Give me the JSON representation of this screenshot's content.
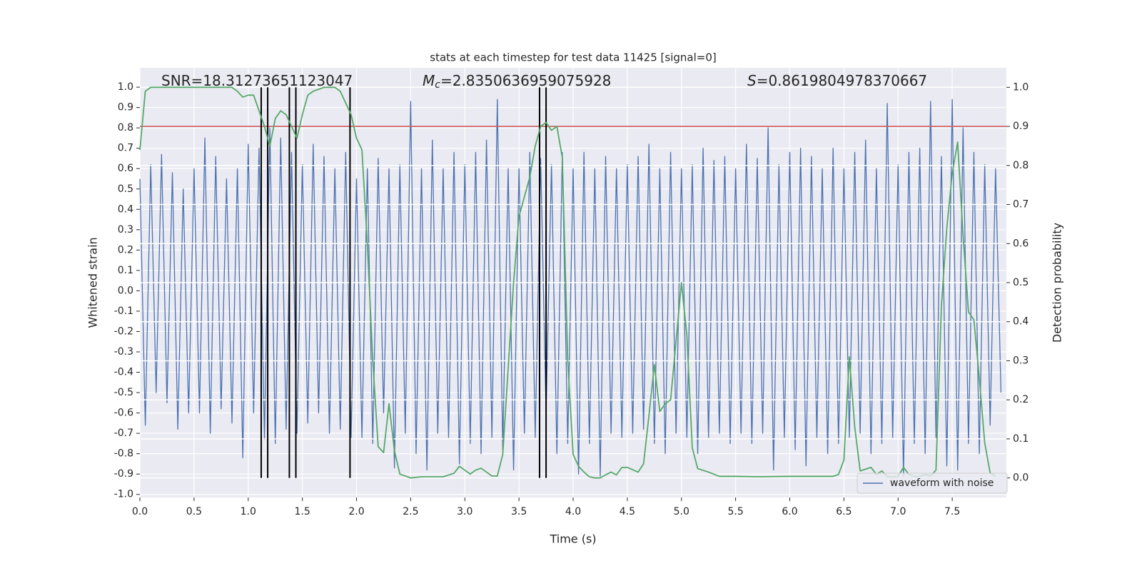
{
  "chart_data": {
    "type": "line",
    "title": "stats at each timestep for test data 11425 [signal=0]",
    "xlabel": "Time (s)",
    "ylabel": "Whitened strain",
    "y2label": "Detection probability",
    "annotations": [
      {
        "label": "SNR=18.31273651123047"
      },
      {
        "symbol": "M",
        "subscript": "c",
        "label": "=2.8350636959075928"
      },
      {
        "symbol": "S",
        "label": "=0.8619804978370667"
      }
    ],
    "xlim": [
      0,
      8.0
    ],
    "ylim": [
      -1.015,
      1.095
    ],
    "y2lim": [
      -0.05,
      1.05
    ],
    "xticks": [
      {
        "value": 0,
        "label": "0.0"
      },
      0.5,
      {
        "value": 1,
        "label": "1.0"
      },
      1.5,
      {
        "value": 2,
        "label": "2.0"
      },
      2.5,
      {
        "value": 3,
        "label": "3.0"
      },
      3.5,
      {
        "value": 4,
        "label": "4.0"
      },
      4.5,
      {
        "value": 5,
        "label": "5.0"
      },
      5.5,
      {
        "value": 6,
        "label": "6.0"
      },
      6.5,
      {
        "value": 7,
        "label": "7.0"
      },
      7.5
    ],
    "yticks": [
      {
        "value": -1,
        "label": "-1.0"
      },
      -0.9,
      -0.8,
      -0.7,
      -0.6,
      -0.5,
      -0.4,
      -0.3,
      -0.2,
      -0.1,
      {
        "value": 0,
        "label": "0.0"
      },
      0.1,
      0.2,
      0.3,
      0.4,
      0.5,
      0.6,
      0.7,
      0.8,
      0.9,
      {
        "value": 1,
        "label": "1.0"
      }
    ],
    "y2ticks": [
      {
        "value": 0,
        "label": "0.0"
      },
      0.1,
      0.2,
      0.3,
      0.4,
      0.5,
      0.6,
      0.7,
      0.8,
      0.9,
      {
        "value": 1,
        "label": "1.0"
      }
    ],
    "grid": true,
    "legend": "lower right",
    "series": [
      {
        "name": "waveform with noise",
        "color": "#4c72b0",
        "x": [
          0,
          0.05,
          0.1,
          0.15,
          0.2,
          0.25,
          0.3,
          0.35,
          0.4,
          0.45,
          0.5,
          0.55,
          0.6,
          0.65,
          0.7,
          0.75,
          0.8,
          0.85,
          0.9,
          0.95,
          1.0,
          1.05,
          1.1,
          1.15,
          1.2,
          1.25,
          1.3,
          1.35,
          1.4,
          1.45,
          1.5,
          1.55,
          1.6,
          1.65,
          1.7,
          1.75,
          1.8,
          1.85,
          1.9,
          1.95,
          2.0,
          2.05,
          2.1,
          2.15,
          2.2,
          2.25,
          2.3,
          2.35,
          2.4,
          2.45,
          2.5,
          2.55,
          2.6,
          2.65,
          2.7,
          2.75,
          2.8,
          2.85,
          2.9,
          2.95,
          3.0,
          3.05,
          3.1,
          3.15,
          3.2,
          3.25,
          3.3,
          3.35,
          3.4,
          3.45,
          3.5,
          3.55,
          3.6,
          3.65,
          3.7,
          3.75,
          3.8,
          3.85,
          3.9,
          3.95,
          4.0,
          4.05,
          4.1,
          4.15,
          4.2,
          4.25,
          4.3,
          4.35,
          4.4,
          4.45,
          4.5,
          4.55,
          4.6,
          4.65,
          4.7,
          4.75,
          4.8,
          4.85,
          4.9,
          4.95,
          5.0,
          5.05,
          5.1,
          5.15,
          5.2,
          5.25,
          5.3,
          5.35,
          5.4,
          5.45,
          5.5,
          5.55,
          5.6,
          5.65,
          5.7,
          5.75,
          5.8,
          5.85,
          5.9,
          5.95,
          6.0,
          6.05,
          6.1,
          6.15,
          6.2,
          6.25,
          6.3,
          6.35,
          6.4,
          6.45,
          6.5,
          6.55,
          6.6,
          6.65,
          6.7,
          6.75,
          6.8,
          6.85,
          6.9,
          6.95,
          7.0,
          7.05,
          7.1,
          7.15,
          7.2,
          7.25,
          7.3,
          7.35,
          7.4,
          7.45,
          7.5,
          7.55,
          7.6,
          7.65,
          7.7,
          7.75,
          7.8,
          7.85,
          7.9,
          7.95
        ],
        "values": [
          0.55,
          -0.66,
          0.62,
          -0.5,
          0.67,
          -0.55,
          0.58,
          -0.68,
          0.5,
          -0.6,
          0.6,
          -0.6,
          0.75,
          -0.7,
          0.66,
          -0.58,
          0.55,
          -0.65,
          0.6,
          -0.82,
          0.72,
          -0.6,
          0.7,
          -0.73,
          0.8,
          -0.75,
          0.75,
          -0.68,
          0.68,
          -0.7,
          0.62,
          -0.65,
          0.72,
          -0.6,
          0.66,
          -0.7,
          0.6,
          -0.68,
          0.68,
          -0.72,
          0.55,
          -0.72,
          0.6,
          -0.75,
          0.65,
          -0.6,
          0.6,
          -0.87,
          0.62,
          -0.7,
          0.93,
          -0.8,
          0.6,
          -0.88,
          0.74,
          -0.7,
          0.6,
          -0.72,
          0.68,
          -0.85,
          0.62,
          -0.75,
          0.68,
          -0.8,
          0.74,
          -0.72,
          0.94,
          -0.78,
          0.6,
          -0.88,
          0.6,
          -0.7,
          0.68,
          -0.72,
          0.65,
          -0.6,
          0.62,
          -0.8,
          0.68,
          -0.75,
          0.6,
          -0.9,
          0.68,
          -0.75,
          0.6,
          -0.91,
          0.66,
          -0.7,
          0.6,
          -0.72,
          0.62,
          -0.7,
          0.66,
          -0.68,
          0.72,
          -0.75,
          0.6,
          -0.8,
          0.68,
          -0.7,
          0.6,
          -0.72,
          0.62,
          -0.8,
          0.7,
          -0.72,
          0.64,
          -0.7,
          0.66,
          -0.75,
          0.6,
          -0.7,
          0.72,
          -0.75,
          0.65,
          -0.7,
          0.8,
          -0.88,
          0.62,
          -0.72,
          0.68,
          -0.78,
          0.7,
          -0.86,
          0.66,
          -0.72,
          0.6,
          -0.8,
          0.7,
          -0.75,
          0.6,
          -0.72,
          0.68,
          -0.7,
          0.74,
          -0.8,
          0.6,
          -0.75,
          0.92,
          -0.72,
          0.62,
          -0.91,
          0.68,
          -0.75,
          0.7,
          -0.8,
          0.93,
          -0.72,
          0.66,
          -0.86,
          0.94,
          -0.88,
          0.8,
          -0.75,
          0.68,
          -0.8,
          0.62,
          -0.66,
          0.6,
          -0.5
        ]
      },
      {
        "color": "#55a868",
        "axis": "y2",
        "x": [
          0,
          0.05,
          0.1,
          0.85,
          0.9,
          0.95,
          1.0,
          1.05,
          1.1,
          1.15,
          1.2,
          1.25,
          1.3,
          1.35,
          1.4,
          1.45,
          1.5,
          1.55,
          1.6,
          1.7,
          1.8,
          1.85,
          1.9,
          1.95,
          2.0,
          2.05,
          2.1,
          2.15,
          2.2,
          2.25,
          2.3,
          2.35,
          2.4,
          2.5,
          2.6,
          2.8,
          2.9,
          2.95,
          3.0,
          3.05,
          3.1,
          3.15,
          3.2,
          3.25,
          3.3,
          3.35,
          3.4,
          3.45,
          3.5,
          3.55,
          3.6,
          3.65,
          3.7,
          3.75,
          3.8,
          3.85,
          3.9,
          3.95,
          4.0,
          4.05,
          4.1,
          4.15,
          4.2,
          4.25,
          4.3,
          4.35,
          4.4,
          4.45,
          4.5,
          4.6,
          4.65,
          4.7,
          4.75,
          4.8,
          4.85,
          4.9,
          4.95,
          5.0,
          5.05,
          5.1,
          5.15,
          5.25,
          5.35,
          5.5,
          5.7,
          6.0,
          6.4,
          6.45,
          6.5,
          6.55,
          6.6,
          6.65,
          6.75,
          6.8,
          6.85,
          6.9,
          6.95,
          7.0,
          7.05,
          7.1,
          7.15,
          7.2,
          7.25,
          7.3,
          7.35,
          7.4,
          7.45,
          7.5,
          7.55,
          7.6,
          7.65,
          7.7,
          7.75,
          7.8,
          7.85,
          7.9
        ],
        "values": [
          0.84,
          0.99,
          1.0,
          1.0,
          0.99,
          0.975,
          0.98,
          0.98,
          0.94,
          0.9,
          0.85,
          0.92,
          0.94,
          0.93,
          0.9,
          0.87,
          0.93,
          0.98,
          0.99,
          1.0,
          1.0,
          0.99,
          0.96,
          0.93,
          0.87,
          0.84,
          0.6,
          0.3,
          0.08,
          0.065,
          0.19,
          0.07,
          0.01,
          0.0,
          0.003,
          0.003,
          0.012,
          0.03,
          0.02,
          0.01,
          0.02,
          0.025,
          0.015,
          0.005,
          0.005,
          0.06,
          0.28,
          0.5,
          0.67,
          0.72,
          0.77,
          0.85,
          0.9,
          0.91,
          0.89,
          0.9,
          0.82,
          0.3,
          0.06,
          0.03,
          0.015,
          0.003,
          0.0,
          0.0,
          0.008,
          0.015,
          0.008,
          0.027,
          0.027,
          0.015,
          0.036,
          0.16,
          0.29,
          0.17,
          0.19,
          0.2,
          0.35,
          0.5,
          0.365,
          0.077,
          0.024,
          0.015,
          0.004,
          0.004,
          0.003,
          0.004,
          0.004,
          0.009,
          0.046,
          0.31,
          0.13,
          0.018,
          0.027,
          0.009,
          0.018,
          0.004,
          0.002,
          0.004,
          0.027,
          0.009,
          0.004,
          0.004,
          0.009,
          0.005,
          0.02,
          0.44,
          0.64,
          0.78,
          0.86,
          0.62,
          0.425,
          0.405,
          0.255,
          0.09,
          0.013,
          0.004
        ]
      }
    ],
    "hlines": [
      {
        "value": 0.9,
        "axis": "y2",
        "color": "#c44e52"
      }
    ],
    "vlines": {
      "x": [
        1.12,
        1.18,
        1.38,
        1.44,
        1.94,
        3.69,
        3.75
      ],
      "ymin": 0,
      "ymax": 1.0,
      "axis": "y2",
      "color": "#000000"
    }
  }
}
